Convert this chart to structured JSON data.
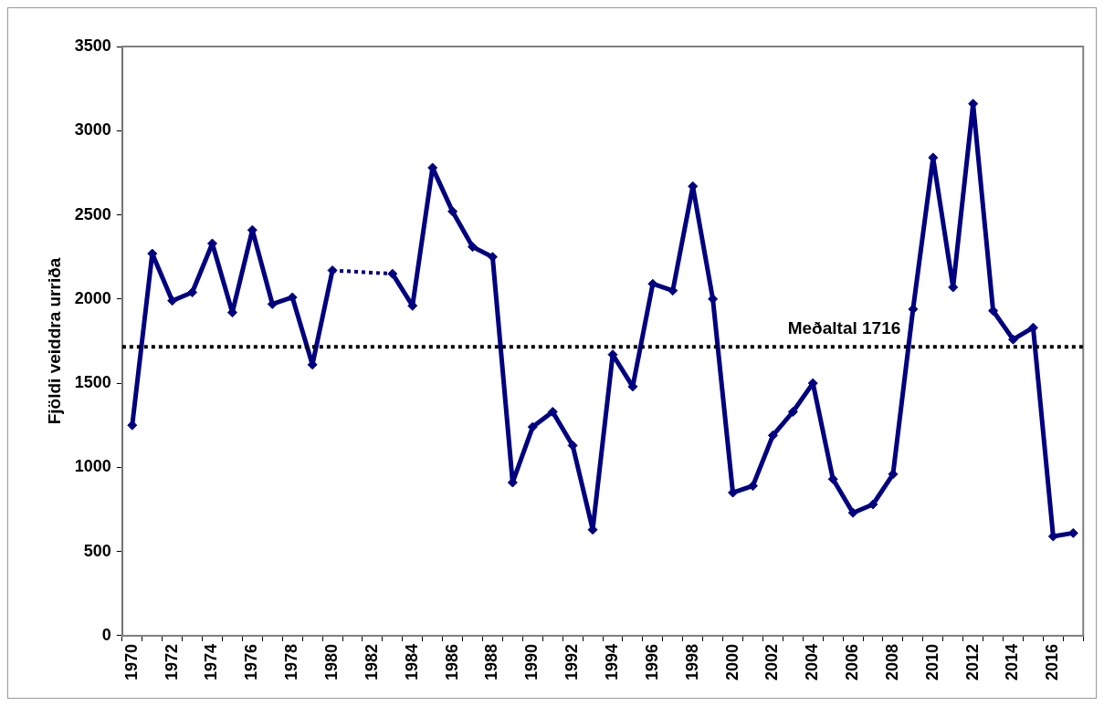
{
  "chart_data": {
    "type": "line",
    "ylabel": "Fjöldi veiddra urriða",
    "categories": [
      "1970",
      null,
      "1972",
      null,
      "1974",
      null,
      "1976",
      null,
      "1978",
      null,
      "1980",
      null,
      "1982",
      null,
      "1984",
      null,
      "1986",
      null,
      "1988",
      null,
      "1990",
      null,
      "1992",
      null,
      "1994",
      null,
      "1996",
      null,
      "1998",
      null,
      "2000",
      null,
      "2002",
      null,
      "2004",
      null,
      "2006",
      null,
      "2008",
      null,
      "2010",
      null,
      "2012",
      null,
      "2014",
      null,
      "2016",
      null
    ],
    "series": [
      {
        "color": "#000080",
        "values": [
          1250,
          2270,
          1990,
          2040,
          2330,
          1920,
          2410,
          1970,
          2010,
          1610,
          2170,
          null,
          null,
          2150,
          1960,
          2780,
          2520,
          2310,
          2250,
          910,
          1240,
          1330,
          1130,
          630,
          1670,
          1480,
          2090,
          2050,
          2670,
          2000,
          850,
          890,
          1190,
          1330,
          1500,
          930,
          730,
          780,
          960,
          1940,
          2840,
          2070,
          3160,
          1930,
          1760,
          1830,
          590,
          610
        ]
      }
    ],
    "ylim": [
      0,
      3500
    ],
    "yticks": [
      0,
      500,
      1000,
      1500,
      2000,
      2500,
      3000,
      3500
    ],
    "grid": false,
    "legend": false,
    "marker": "diamond",
    "line_style": "solid",
    "ref_lines": [
      {
        "axis": "y",
        "value": 1716,
        "label": "Meðaltal 1716",
        "color": "#000000",
        "line_style": "dotted"
      }
    ]
  }
}
